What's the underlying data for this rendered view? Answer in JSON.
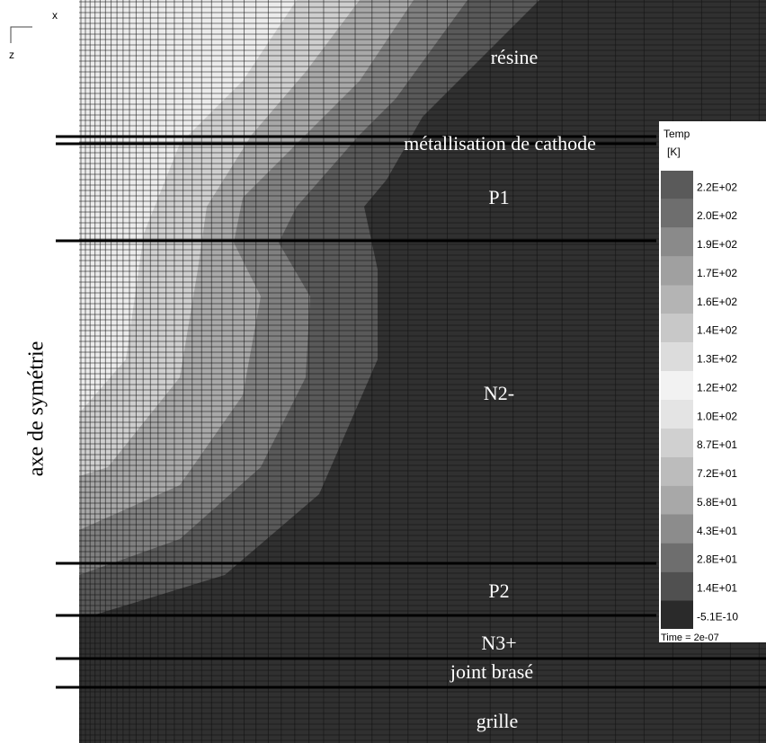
{
  "axis_indicator": {
    "x": "x",
    "z": "z"
  },
  "regions": [
    "résine",
    "métallisation de cathode",
    "P1",
    "N2-",
    "P2",
    "N3+",
    "joint brasé",
    "grille"
  ],
  "side_label": "axe de symétrie",
  "legend": {
    "title": "Temp",
    "unit": "[K]",
    "labels": [
      "2.2E+02",
      "2.0E+02",
      "1.9E+02",
      "1.7E+02",
      "1.6E+02",
      "1.4E+02",
      "1.3E+02",
      "1.2E+02",
      "1.0E+02",
      "8.7E+01",
      "7.2E+01",
      "5.8E+01",
      "4.3E+01",
      "2.8E+01",
      "1.4E+01",
      "-5.1E-10"
    ],
    "time": "Time = 2e-07"
  }
}
